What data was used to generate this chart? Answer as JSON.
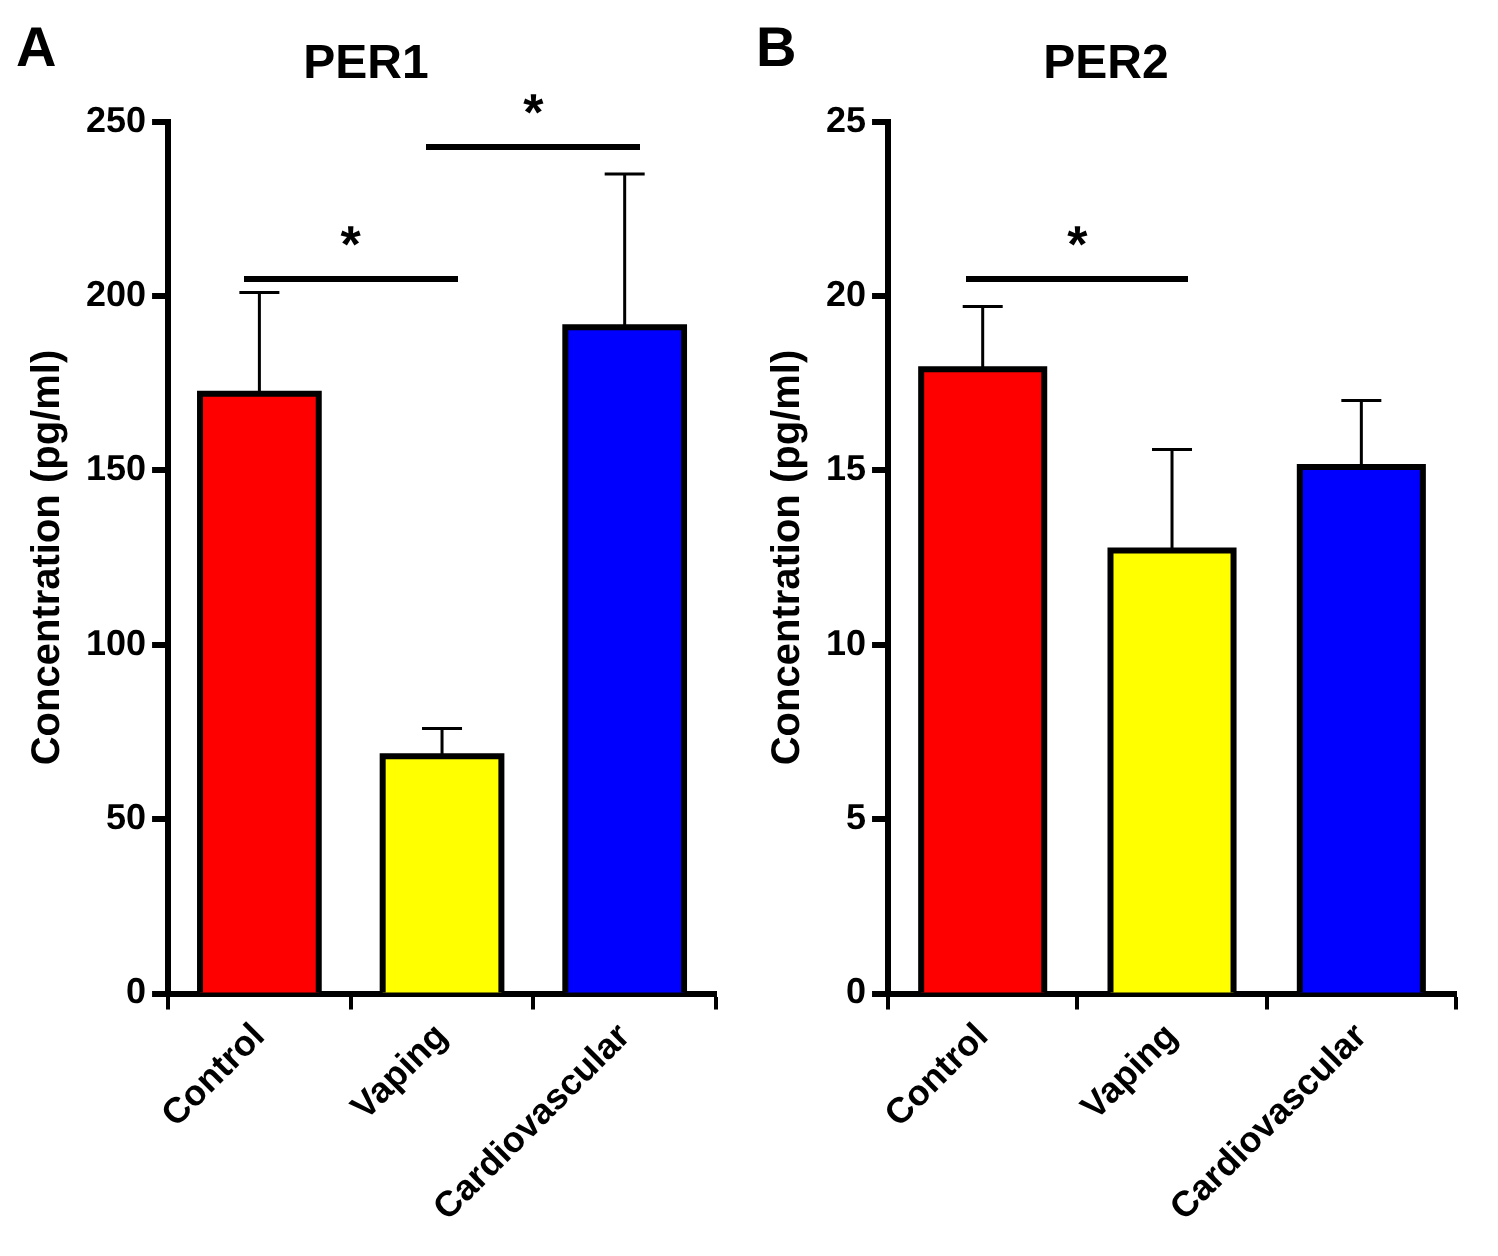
{
  "chart_data": [
    {
      "type": "bar",
      "title": "PER1",
      "ylabel": "Concentration (pg/ml)",
      "categories": [
        "Control",
        "Vaping",
        "Cardiovascular"
      ],
      "values": [
        172,
        68,
        191
      ],
      "errors": [
        29,
        8,
        44
      ],
      "colors": [
        "#ff0000",
        "#ffff00",
        "#0000ff"
      ],
      "ylim": [
        0,
        250
      ],
      "yticks": [
        0,
        50,
        100,
        150,
        200,
        250
      ],
      "grid": false,
      "legend": false,
      "annotations": [
        "A",
        "*",
        "*"
      ]
    },
    {
      "type": "bar",
      "title": "PER2",
      "ylabel": "Concentration (pg/ml)",
      "categories": [
        "Control",
        "Vaping",
        "Cardiovascular"
      ],
      "values": [
        17.9,
        12.7,
        15.1
      ],
      "errors": [
        1.8,
        2.9,
        1.9
      ],
      "colors": [
        "#ff0000",
        "#ffff00",
        "#0000ff"
      ],
      "ylim": [
        0,
        25
      ],
      "yticks": [
        0,
        5,
        10,
        15,
        20,
        25
      ],
      "grid": false,
      "legend": false,
      "annotations": [
        "B",
        "*"
      ]
    }
  ]
}
